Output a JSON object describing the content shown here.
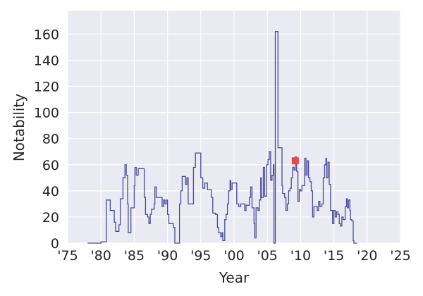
{
  "chart_data": {
    "type": "line",
    "title": "",
    "xlabel": "Year",
    "ylabel": "Notability",
    "xlim": [
      1975,
      2025
    ],
    "ylim": [
      0,
      178
    ],
    "xticks": [
      1975,
      1980,
      1985,
      1990,
      1995,
      2000,
      2005,
      2010,
      2015,
      2020,
      2025
    ],
    "xtick_labels": [
      "'75",
      "'80",
      "'85",
      "'90",
      "'95",
      "'00",
      "'05",
      "'10",
      "'15",
      "'20",
      "'25"
    ],
    "yticks": [
      0,
      20,
      40,
      60,
      80,
      100,
      120,
      140,
      160
    ],
    "grid": true,
    "background": "#eaeaf2",
    "line_color": "#4b4b9c",
    "marker_color": "#f04545",
    "series": [
      {
        "points": [
          [
            1978.0,
            0
          ],
          [
            1979.0,
            0
          ],
          [
            1979.6,
            0
          ],
          [
            1980.0,
            1
          ],
          [
            1980.5,
            1
          ],
          [
            1980.8,
            33
          ],
          [
            1981.2,
            33
          ],
          [
            1981.4,
            25
          ],
          [
            1981.8,
            25
          ],
          [
            1982.0,
            16
          ],
          [
            1982.2,
            9
          ],
          [
            1982.5,
            9
          ],
          [
            1982.7,
            14
          ],
          [
            1982.9,
            34
          ],
          [
            1983.1,
            34
          ],
          [
            1983.3,
            50
          ],
          [
            1983.5,
            50
          ],
          [
            1983.6,
            60
          ],
          [
            1983.8,
            52
          ],
          [
            1984.0,
            30
          ],
          [
            1984.1,
            8
          ],
          [
            1984.4,
            8
          ],
          [
            1984.5,
            27
          ],
          [
            1984.9,
            27
          ],
          [
            1985.0,
            44
          ],
          [
            1985.1,
            58
          ],
          [
            1985.3,
            52
          ],
          [
            1985.6,
            57
          ],
          [
            1986.3,
            57
          ],
          [
            1986.5,
            35
          ],
          [
            1986.7,
            22
          ],
          [
            1987.0,
            20
          ],
          [
            1987.2,
            15
          ],
          [
            1987.4,
            22
          ],
          [
            1987.6,
            26
          ],
          [
            1987.9,
            26
          ],
          [
            1988.0,
            30
          ],
          [
            1988.1,
            43
          ],
          [
            1988.3,
            35
          ],
          [
            1989.0,
            35
          ],
          [
            1989.2,
            28
          ],
          [
            1989.4,
            33
          ],
          [
            1989.6,
            30
          ],
          [
            1989.8,
            33
          ],
          [
            1990.0,
            22
          ],
          [
            1990.2,
            15
          ],
          [
            1990.7,
            15
          ],
          [
            1990.9,
            12
          ],
          [
            1991.1,
            0
          ],
          [
            1991.4,
            0
          ],
          [
            1991.7,
            0
          ],
          [
            1991.8,
            30
          ],
          [
            1992.0,
            40
          ],
          [
            1992.2,
            51
          ],
          [
            1992.5,
            51
          ],
          [
            1992.7,
            45
          ],
          [
            1992.9,
            50
          ],
          [
            1993.1,
            30
          ],
          [
            1993.6,
            30
          ],
          [
            1993.9,
            58
          ],
          [
            1994.2,
            69
          ],
          [
            1994.9,
            69
          ],
          [
            1995.0,
            50
          ],
          [
            1995.3,
            42
          ],
          [
            1995.6,
            46
          ],
          [
            1996.0,
            41
          ],
          [
            1996.4,
            41
          ],
          [
            1996.6,
            35
          ],
          [
            1996.8,
            23
          ],
          [
            1997.2,
            22
          ],
          [
            1997.5,
            12
          ],
          [
            1997.7,
            8
          ],
          [
            1998.0,
            5
          ],
          [
            1998.2,
            8
          ],
          [
            1998.3,
            2
          ],
          [
            1998.6,
            18
          ],
          [
            1998.8,
            22
          ],
          [
            1999.0,
            30
          ],
          [
            1999.2,
            40
          ],
          [
            1999.4,
            48
          ],
          [
            1999.5,
            41
          ],
          [
            1999.7,
            46
          ],
          [
            2000.2,
            46
          ],
          [
            2000.4,
            30
          ],
          [
            2000.7,
            28
          ],
          [
            2001.0,
            30
          ],
          [
            2001.4,
            30
          ],
          [
            2001.6,
            25
          ],
          [
            2001.8,
            29
          ],
          [
            2002.1,
            29
          ],
          [
            2002.3,
            35
          ],
          [
            2002.5,
            43
          ],
          [
            2002.7,
            27
          ],
          [
            2003.0,
            15
          ],
          [
            2003.1,
            4
          ],
          [
            2003.3,
            27
          ],
          [
            2003.6,
            25
          ],
          [
            2003.8,
            33
          ],
          [
            2004.0,
            50
          ],
          [
            2004.1,
            35
          ],
          [
            2004.4,
            58
          ],
          [
            2004.6,
            36
          ],
          [
            2004.9,
            60
          ],
          [
            2005.1,
            64
          ],
          [
            2005.3,
            70
          ],
          [
            2005.5,
            48
          ],
          [
            2005.7,
            52
          ],
          [
            2005.9,
            60
          ],
          [
            2006.0,
            0
          ],
          [
            2006.2,
            162
          ],
          [
            2006.5,
            162
          ],
          [
            2006.6,
            73
          ],
          [
            2007.0,
            73
          ],
          [
            2007.2,
            44
          ],
          [
            2007.3,
            38
          ],
          [
            2007.6,
            35
          ],
          [
            2007.8,
            25
          ],
          [
            2008.0,
            30
          ],
          [
            2008.2,
            40
          ],
          [
            2008.4,
            42
          ],
          [
            2008.6,
            50
          ],
          [
            2008.8,
            58
          ],
          [
            2009.0,
            56
          ],
          [
            2009.2,
            66
          ],
          [
            2009.4,
            55
          ],
          [
            2009.6,
            32
          ],
          [
            2009.8,
            41
          ],
          [
            2010.0,
            40
          ],
          [
            2010.2,
            44
          ],
          [
            2010.4,
            44
          ],
          [
            2010.6,
            65
          ],
          [
            2010.8,
            52
          ],
          [
            2011.0,
            63
          ],
          [
            2011.2,
            50
          ],
          [
            2011.4,
            47
          ],
          [
            2011.6,
            40
          ],
          [
            2011.8,
            20
          ],
          [
            2012.0,
            28
          ],
          [
            2012.2,
            28
          ],
          [
            2012.5,
            25
          ],
          [
            2012.7,
            32
          ],
          [
            2012.9,
            28
          ],
          [
            2013.2,
            30
          ],
          [
            2013.4,
            50
          ],
          [
            2013.6,
            60
          ],
          [
            2013.8,
            65
          ],
          [
            2013.9,
            50
          ],
          [
            2014.1,
            62
          ],
          [
            2014.3,
            45
          ],
          [
            2014.5,
            25
          ],
          [
            2014.8,
            15
          ],
          [
            2015.0,
            25
          ],
          [
            2015.2,
            20
          ],
          [
            2015.4,
            24
          ],
          [
            2015.6,
            22
          ],
          [
            2015.8,
            15
          ],
          [
            2016.0,
            13
          ],
          [
            2016.2,
            20
          ],
          [
            2016.4,
            18
          ],
          [
            2016.7,
            28
          ],
          [
            2016.9,
            34
          ],
          [
            2017.0,
            27
          ],
          [
            2017.2,
            33
          ],
          [
            2017.4,
            25
          ],
          [
            2017.5,
            18
          ],
          [
            2017.7,
            17
          ],
          [
            2017.9,
            2
          ],
          [
            2018.0,
            0
          ],
          [
            2018.5,
            0
          ]
        ]
      }
    ],
    "markers": [
      {
        "x": 2009.2,
        "y": 63
      }
    ]
  }
}
